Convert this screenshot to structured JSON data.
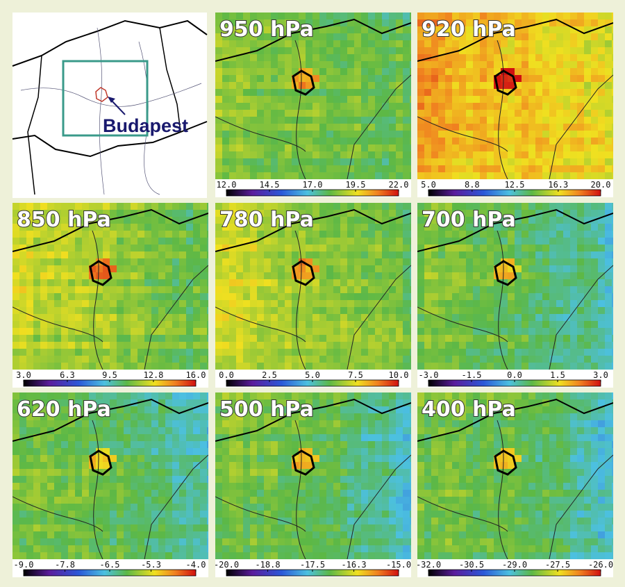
{
  "locator": {
    "label": "Budapest"
  },
  "panels": [
    {
      "title": "950 hPa",
      "colorbar": {
        "lim": [
          12,
          22
        ],
        "ticks": [
          {
            "value": 12,
            "label": "12.0"
          },
          {
            "value": 14.5,
            "label": "14.5"
          },
          {
            "value": 17,
            "label": "17.0"
          },
          {
            "value": 19.5,
            "label": "19.5"
          },
          {
            "value": 22,
            "label": "22.0"
          }
        ]
      }
    },
    {
      "title": "920 hPa",
      "colorbar": {
        "lim": [
          5,
          20
        ],
        "ticks": [
          {
            "value": 5,
            "label": "5.0"
          },
          {
            "value": 8.8,
            "label": "8.8"
          },
          {
            "value": 12.5,
            "label": "12.5"
          },
          {
            "value": 16.3,
            "label": "16.3"
          },
          {
            "value": 20,
            "label": "20.0"
          }
        ]
      }
    },
    {
      "title": "850 hPa",
      "colorbar": {
        "lim": [
          3,
          16
        ],
        "ticks": [
          {
            "value": 3,
            "label": "3.0"
          },
          {
            "value": 6.3,
            "label": "6.3"
          },
          {
            "value": 9.5,
            "label": "9.5"
          },
          {
            "value": 12.8,
            "label": "12.8"
          },
          {
            "value": 16,
            "label": "16.0"
          }
        ]
      }
    },
    {
      "title": "780 hPa",
      "colorbar": {
        "lim": [
          0,
          10
        ],
        "ticks": [
          {
            "value": 0,
            "label": "0.0"
          },
          {
            "value": 2.5,
            "label": "2.5"
          },
          {
            "value": 5,
            "label": "5.0"
          },
          {
            "value": 7.5,
            "label": "7.5"
          },
          {
            "value": 10,
            "label": "10.0"
          }
        ]
      }
    },
    {
      "title": "700 hPa",
      "colorbar": {
        "lim": [
          -3,
          3
        ],
        "ticks": [
          {
            "value": -3,
            "label": "-3.0"
          },
          {
            "value": -1.5,
            "label": "-1.5"
          },
          {
            "value": 0,
            "label": "0.0"
          },
          {
            "value": 1.5,
            "label": "1.5"
          },
          {
            "value": 3,
            "label": "3.0"
          }
        ]
      }
    },
    {
      "title": "620 hPa",
      "colorbar": {
        "lim": [
          -9,
          -4
        ],
        "ticks": [
          {
            "value": -9,
            "label": "-9.0"
          },
          {
            "value": -7.8,
            "label": "-7.8"
          },
          {
            "value": -6.5,
            "label": "-6.5"
          },
          {
            "value": -5.3,
            "label": "-5.3"
          },
          {
            "value": -4,
            "label": "-4.0"
          }
        ]
      }
    },
    {
      "title": "500 hPa",
      "colorbar": {
        "lim": [
          -20,
          -15
        ],
        "ticks": [
          {
            "value": -20,
            "label": "-20.0"
          },
          {
            "value": -18.8,
            "label": "-18.8"
          },
          {
            "value": -17.5,
            "label": "-17.5"
          },
          {
            "value": -16.3,
            "label": "-16.3"
          },
          {
            "value": -15,
            "label": "-15.0"
          }
        ]
      }
    },
    {
      "title": "400 hPa",
      "colorbar": {
        "lim": [
          -32,
          -26
        ],
        "ticks": [
          {
            "value": -32,
            "label": "-32.0"
          },
          {
            "value": -30.5,
            "label": "-30.5"
          },
          {
            "value": -29,
            "label": "-29.0"
          },
          {
            "value": -27.5,
            "label": "-27.5"
          },
          {
            "value": -26,
            "label": "-26.0"
          }
        ]
      }
    }
  ]
}
